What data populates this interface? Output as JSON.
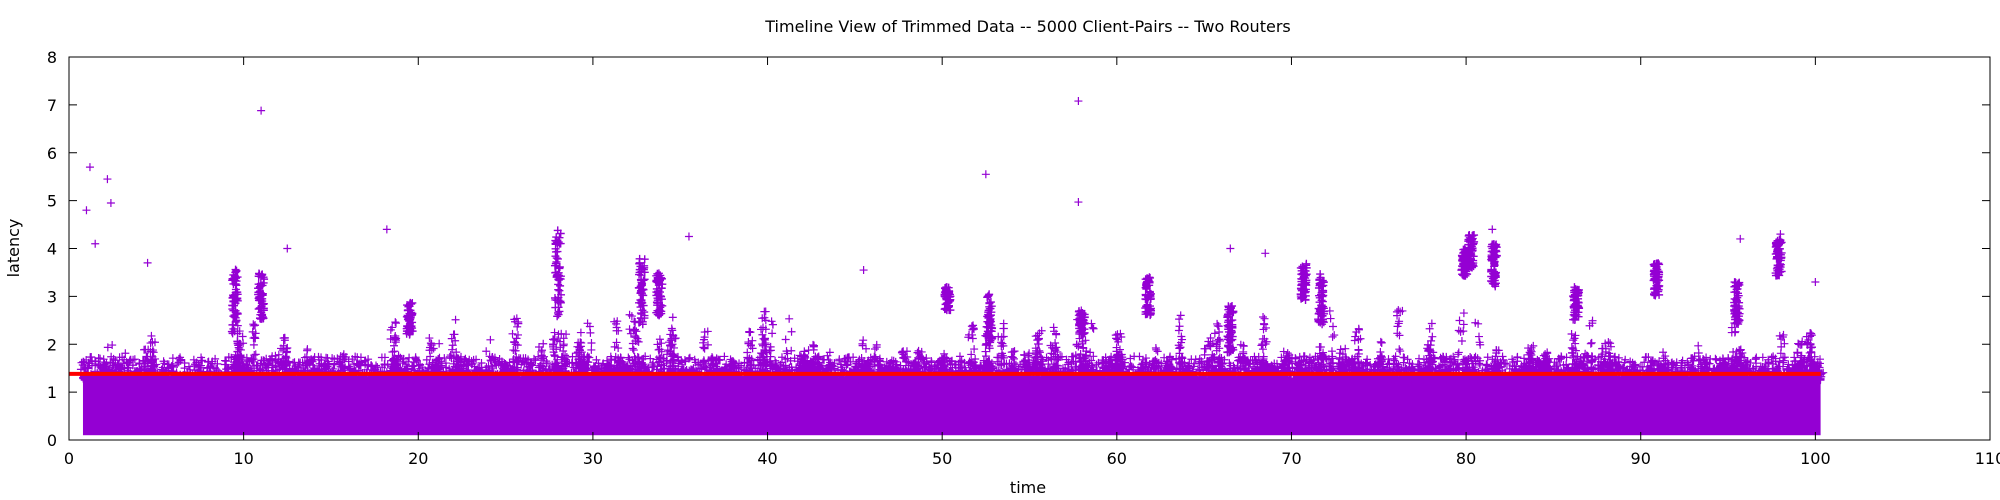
{
  "chart_data": {
    "type": "scatter",
    "title": "Timeline View of Trimmed Data -- 5000 Client-Pairs -- Two Routers",
    "xlabel": "time",
    "ylabel": "latency",
    "xlim": [
      0,
      110
    ],
    "ylim": [
      0,
      8
    ],
    "x_ticks": [
      0,
      10,
      20,
      30,
      40,
      50,
      60,
      70,
      80,
      90,
      100,
      110
    ],
    "y_ticks": [
      0,
      1,
      2,
      3,
      4,
      5,
      6,
      7,
      8
    ],
    "grid": false,
    "marker": "+",
    "point_color": "#9400d3",
    "threshold_color": "#ff0000",
    "data_x_range": [
      0.8,
      100.3
    ],
    "dense_band": [
      0.1,
      1.3
    ],
    "series": [
      {
        "type": "scatter",
        "outliers": [
          {
            "x": 1.0,
            "y": 4.8
          },
          {
            "x": 1.2,
            "y": 5.7
          },
          {
            "x": 2.2,
            "y": 5.45
          },
          {
            "x": 2.4,
            "y": 4.95
          },
          {
            "x": 1.5,
            "y": 4.1
          },
          {
            "x": 11.0,
            "y": 6.88
          },
          {
            "x": 12.5,
            "y": 4.0
          },
          {
            "x": 18.2,
            "y": 4.4
          },
          {
            "x": 35.5,
            "y": 4.25
          },
          {
            "x": 52.5,
            "y": 5.55
          },
          {
            "x": 57.8,
            "y": 7.08
          },
          {
            "x": 57.8,
            "y": 4.97
          },
          {
            "x": 66.5,
            "y": 4.0
          },
          {
            "x": 81.5,
            "y": 4.4
          },
          {
            "x": 95.7,
            "y": 4.2
          },
          {
            "x": 98.0,
            "y": 4.3
          },
          {
            "x": 4.5,
            "y": 3.7
          },
          {
            "x": 100.0,
            "y": 3.3
          },
          {
            "x": 45.5,
            "y": 3.55
          },
          {
            "x": 68.5,
            "y": 3.9
          }
        ],
        "columns": [
          {
            "x": 9.5,
            "y": [
              2.2,
              3.6
            ]
          },
          {
            "x": 11.0,
            "y": [
              2.5,
              3.5
            ]
          },
          {
            "x": 19.5,
            "y": [
              2.2,
              2.9
            ]
          },
          {
            "x": 28.0,
            "y": [
              2.5,
              4.4
            ]
          },
          {
            "x": 32.8,
            "y": [
              2.4,
              3.8
            ]
          },
          {
            "x": 33.8,
            "y": [
              2.6,
              3.5
            ]
          },
          {
            "x": 50.3,
            "y": [
              2.7,
              3.2
            ]
          },
          {
            "x": 52.7,
            "y": [
              2.0,
              3.1
            ]
          },
          {
            "x": 61.8,
            "y": [
              2.6,
              3.4
            ]
          },
          {
            "x": 66.5,
            "y": [
              1.8,
              2.8
            ]
          },
          {
            "x": 70.7,
            "y": [
              2.9,
              3.7
            ]
          },
          {
            "x": 71.7,
            "y": [
              2.4,
              3.5
            ]
          },
          {
            "x": 79.9,
            "y": [
              3.4,
              4.0
            ]
          },
          {
            "x": 80.3,
            "y": [
              3.6,
              4.3
            ]
          },
          {
            "x": 81.6,
            "y": [
              3.2,
              4.1
            ]
          },
          {
            "x": 90.9,
            "y": [
              3.0,
              3.7
            ]
          },
          {
            "x": 95.5,
            "y": [
              2.4,
              3.3
            ]
          },
          {
            "x": 97.9,
            "y": [
              3.4,
              4.2
            ]
          },
          {
            "x": 58.0,
            "y": [
              2.2,
              2.7
            ]
          },
          {
            "x": 86.3,
            "y": [
              2.5,
              3.2
            ]
          }
        ]
      },
      {
        "type": "line",
        "points": [
          {
            "x": 0,
            "y": 1.38
          },
          {
            "x": 100.3,
            "y": 1.38
          }
        ]
      }
    ]
  }
}
